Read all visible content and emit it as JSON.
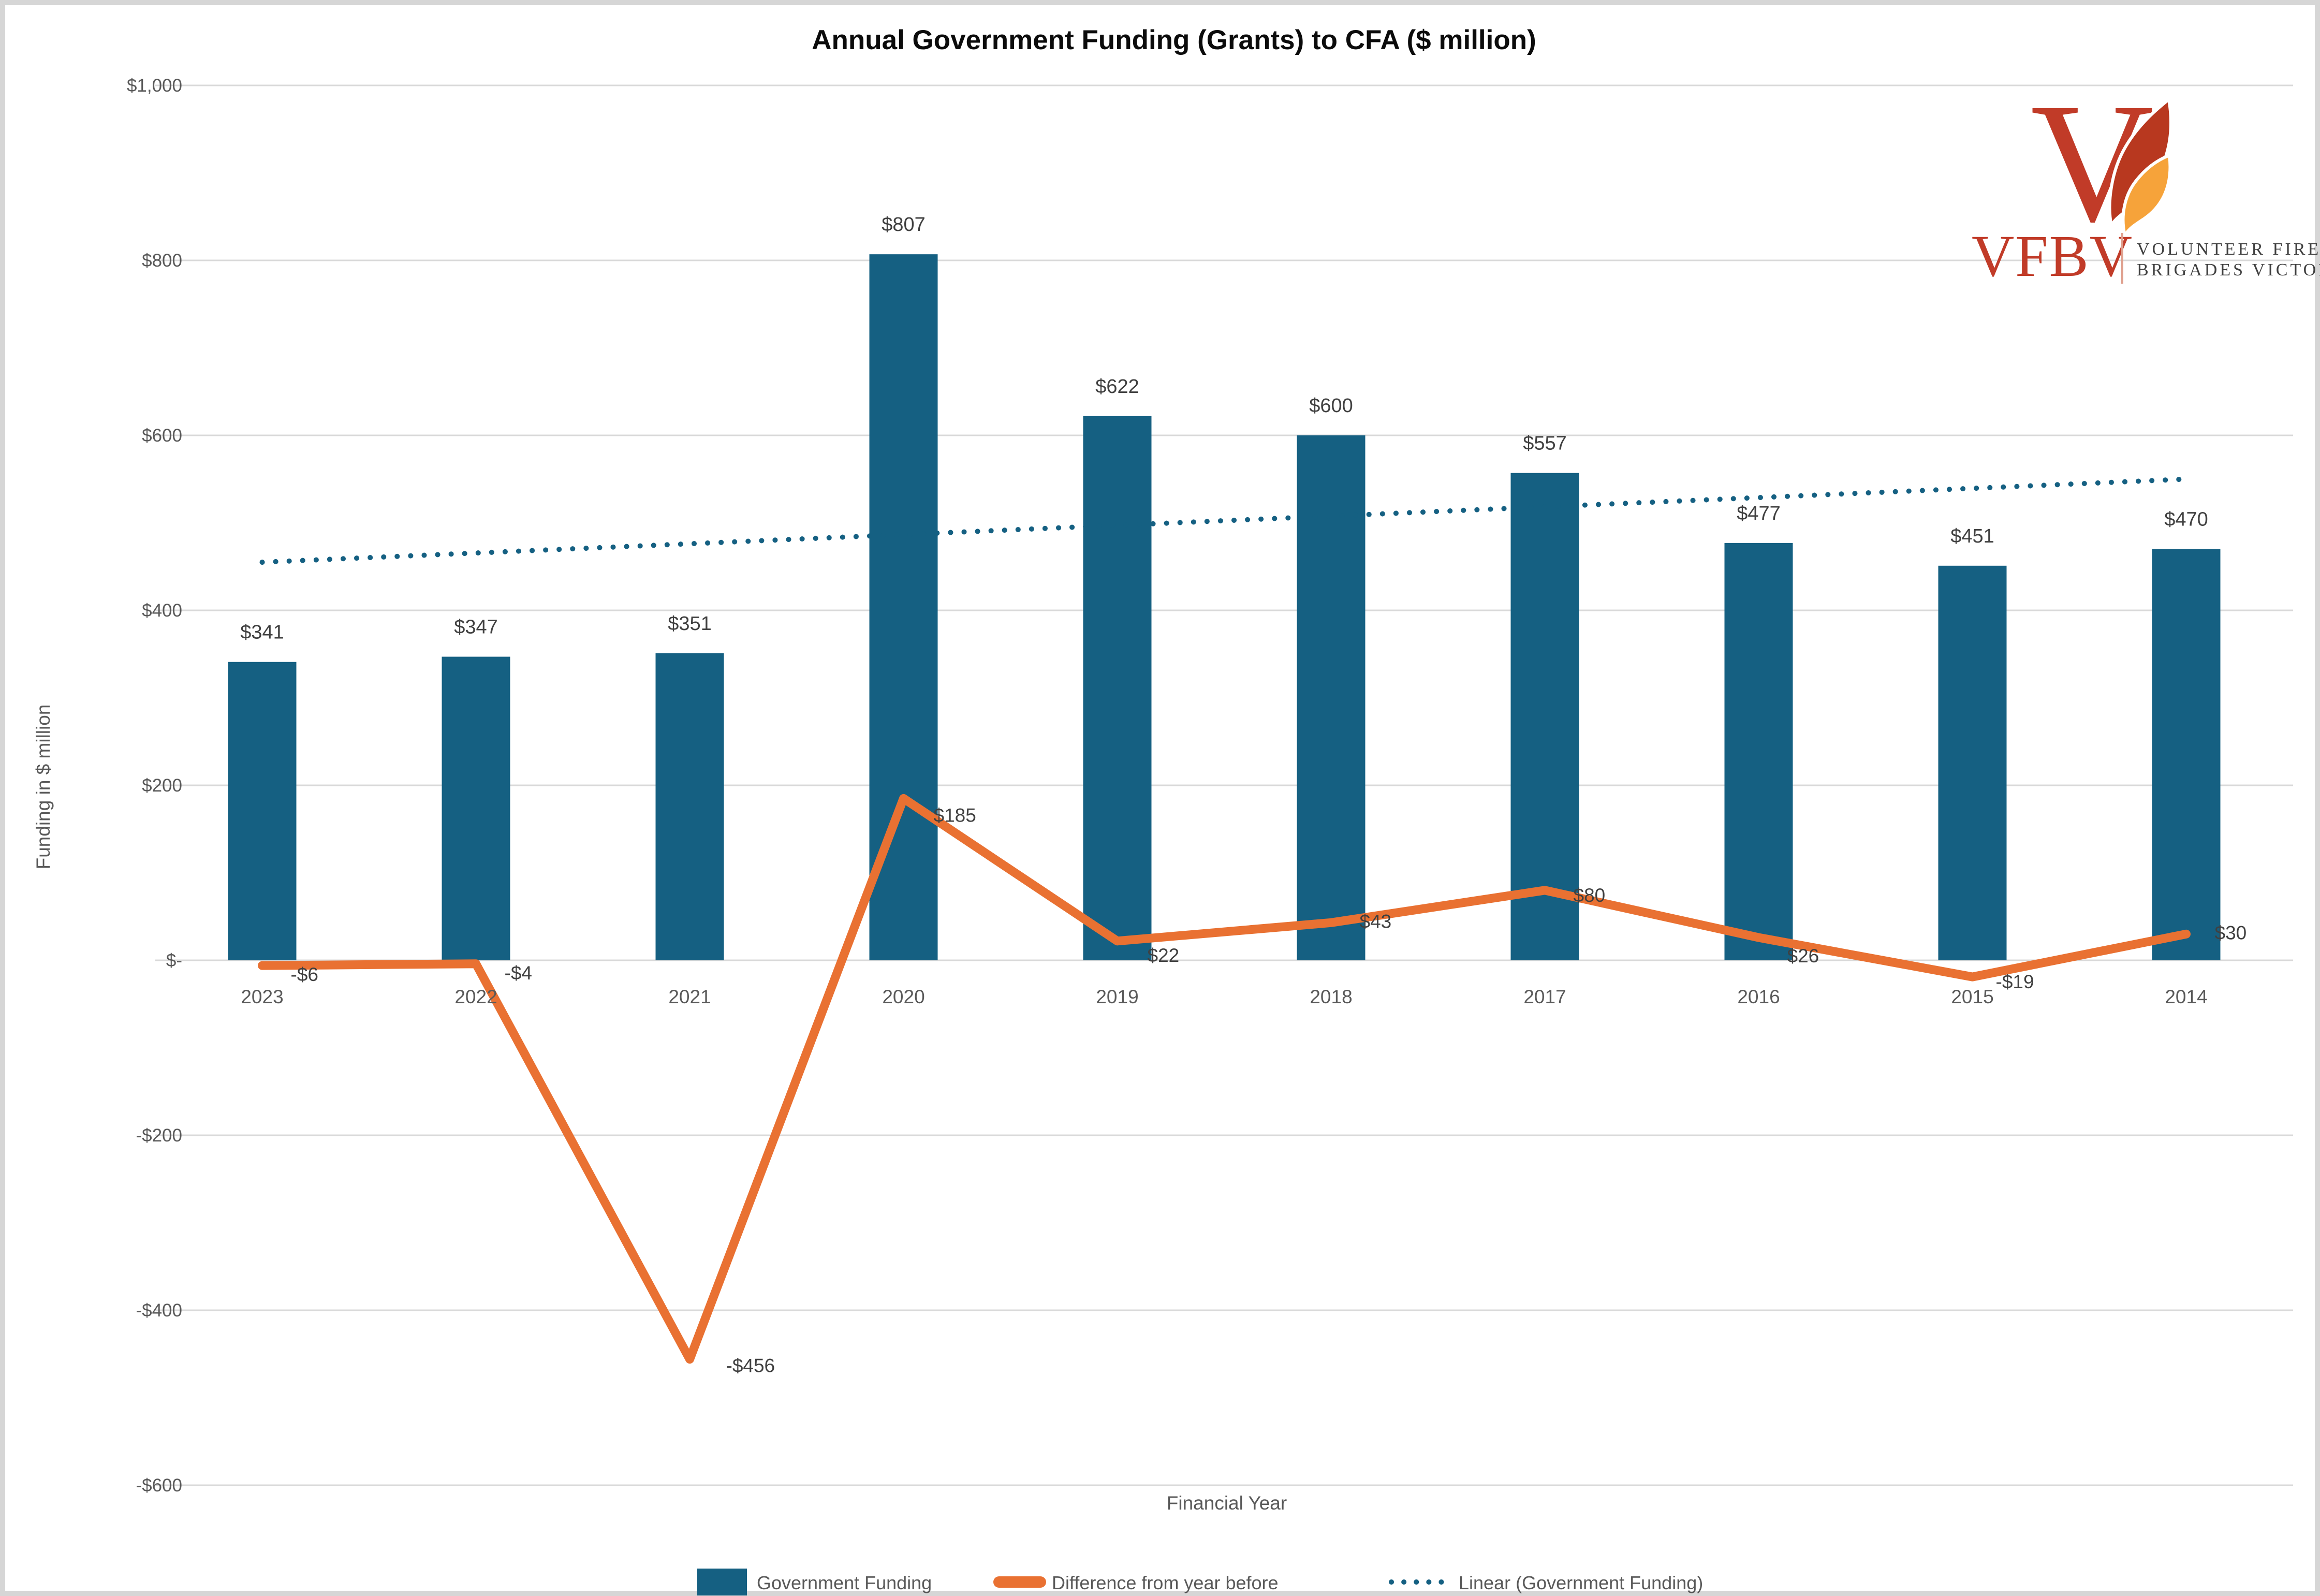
{
  "title": "Annual Government Funding (Grants) to CFA ($ million)",
  "logo": {
    "brand": "VFBV",
    "org_line1": "VOLUNTEER FIRE",
    "org_line2": "BRIGADES VICTORIA",
    "brand_color": "#C13B28",
    "flame_dark": "#B8381F",
    "flame_orange": "#F6A33A"
  },
  "axes": {
    "y_title": "Funding in $ million",
    "x_title": "Financial Year",
    "y_ticks": [
      {
        "label": "$1,000",
        "value": 1000
      },
      {
        "label": "$800",
        "value": 800
      },
      {
        "label": "$600",
        "value": 600
      },
      {
        "label": "$400",
        "value": 400
      },
      {
        "label": "$200",
        "value": 200
      },
      {
        "label": "$-",
        "value": 0
      },
      {
        "label": "-$200",
        "value": -200
      },
      {
        "label": "-$400",
        "value": -400
      },
      {
        "label": "-$600",
        "value": -600
      }
    ]
  },
  "legend": {
    "items": [
      {
        "label": "Government Funding",
        "swatch": "bar",
        "color": "#156082"
      },
      {
        "label": "Difference from year before",
        "swatch": "line",
        "color": "#E97132"
      },
      {
        "label": "Linear (Government Funding)",
        "swatch": "dotted",
        "color": "#156082"
      }
    ]
  },
  "chart_data": {
    "type": "bar",
    "categories": [
      "2023",
      "2022",
      "2021",
      "2020",
      "2019",
      "2018",
      "2017",
      "2016",
      "2015",
      "2014"
    ],
    "series": [
      {
        "name": "Government Funding",
        "type": "bar",
        "color": "#156082",
        "values": [
          341,
          347,
          351,
          807,
          622,
          600,
          557,
          477,
          451,
          470
        ],
        "labels": [
          "$341",
          "$347",
          "$351",
          "$807",
          "$622",
          "$600",
          "$557",
          "$477",
          "$451",
          "$470"
        ]
      },
      {
        "name": "Difference from year before",
        "type": "line",
        "color": "#E97132",
        "values": [
          -6,
          -4,
          -456,
          185,
          22,
          43,
          80,
          26,
          -19,
          30
        ],
        "labels": [
          "-$6",
          "-$4",
          "-$456",
          "$185",
          "$22",
          "$43",
          "$80",
          "$26",
          "-$19",
          "$30"
        ]
      },
      {
        "name": "Linear (Government Funding)",
        "type": "trendline",
        "style": "dotted",
        "color": "#156082",
        "start_value": 455,
        "end_value": 550
      }
    ],
    "title": "Annual Government Funding (Grants) to CFA ($ million)",
    "xlabel": "Financial Year",
    "ylabel": "Funding in $ million",
    "ylim": [
      -600,
      1000
    ],
    "y_gridline_step": 200,
    "grid": true,
    "legend_position": "bottom",
    "gridline_color": "#D9D9D9",
    "tick_color": "#595959",
    "data_label_color": "#404040"
  }
}
